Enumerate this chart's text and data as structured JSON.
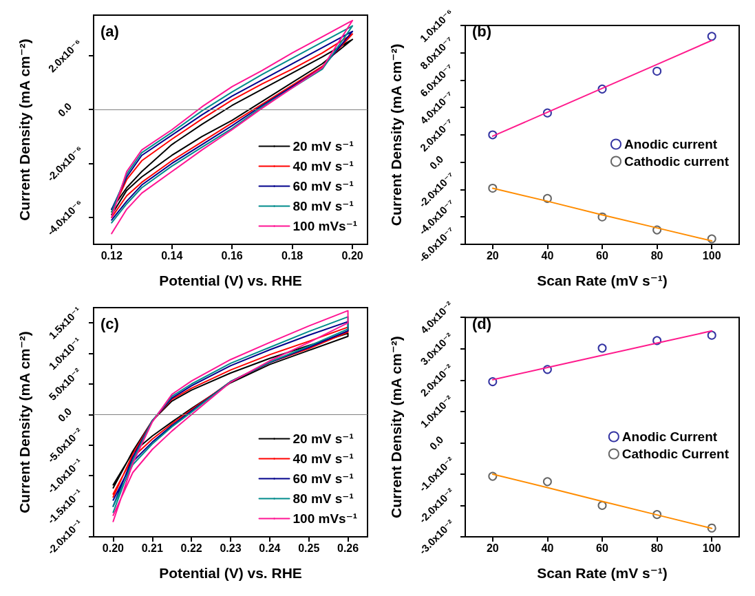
{
  "chart_data": [
    {
      "type": "line",
      "annotations": [
        "(a)"
      ],
      "xlabel": "Potential (V) vs. RHE",
      "ylabel": "Current Density (mA cm⁻²)",
      "x": [
        0.12,
        0.125,
        0.13,
        0.14,
        0.15,
        0.16,
        0.17,
        0.18,
        0.19,
        0.2,
        0.19,
        0.18,
        0.17,
        0.16,
        0.15,
        0.14,
        0.13,
        0.125,
        0.12
      ],
      "series": [
        {
          "name": "20 mV s⁻¹",
          "color": "#000000",
          "values": [
            -3.7e-06,
            -2.9e-06,
            -2.3e-06,
            -1.3e-06,
            -5.5e-07,
            1.5e-07,
            7.5e-07,
            1.35e-06,
            1.95e-06,
            2.6e-06,
            1.7e-06,
            1e-06,
            3e-07,
            -4e-07,
            -1e-06,
            -1.7e-06,
            -2.5e-06,
            -3e-06,
            -3.9e-06
          ]
        },
        {
          "name": "40 mV s⁻¹",
          "color": "#ff0000",
          "values": [
            -3.8e-06,
            -2.6e-06,
            -1.9e-06,
            -1.1e-06,
            -3.5e-07,
            3.5e-07,
            9.5e-07,
            1.5e-06,
            2.1e-06,
            2.8e-06,
            1.6e-06,
            9e-07,
            2e-07,
            -5e-07,
            -1.2e-06,
            -1.9e-06,
            -2.7e-06,
            -3.2e-06,
            -4e-06
          ]
        },
        {
          "name": "60 mV s⁻¹",
          "color": "#00008b",
          "values": [
            -3.7e-06,
            -2.5e-06,
            -1.7e-06,
            -9.5e-07,
            -2e-07,
            5e-07,
            1.1e-06,
            1.7e-06,
            2.3e-06,
            2.9e-06,
            1.55e-06,
            8.5e-07,
            1.5e-07,
            -6e-07,
            -1.3e-06,
            -2e-06,
            -2.8e-06,
            -3.4e-06,
            -4.1e-06
          ]
        },
        {
          "name": "80 mV s⁻¹",
          "color": "#008b8b",
          "values": [
            -3.8e-06,
            -2.4e-06,
            -1.6e-06,
            -8.5e-07,
            -5e-08,
            6.5e-07,
            1.3e-06,
            1.9e-06,
            2.5e-06,
            3.1e-06,
            1.5e-06,
            8e-07,
            1e-07,
            -7e-07,
            -1.4e-06,
            -2.1e-06,
            -2.9e-06,
            -3.5e-06,
            -4.2e-06
          ]
        },
        {
          "name": "100 mVs⁻¹",
          "color": "#ff1493",
          "values": [
            -4e-06,
            -2.3e-06,
            -1.5e-06,
            -7.5e-07,
            1e-07,
            8.5e-07,
            1.45e-06,
            2.1e-06,
            2.7e-06,
            3.3e-06,
            1.55e-06,
            8e-07,
            5e-08,
            -7.5e-07,
            -1.5e-06,
            -2.3e-06,
            -3.1e-06,
            -3.7e-06,
            -4.6e-06
          ]
        }
      ],
      "xlim": [
        0.114,
        0.205
      ],
      "xticks": [
        0.12,
        0.14,
        0.16,
        0.18,
        {
          "value": 0.2,
          "label": "0.20"
        }
      ],
      "ylim": [
        -5e-06,
        3.5e-06
      ],
      "yticks": [
        {
          "value": -4e-06,
          "label": "-4.0x10⁻⁶"
        },
        {
          "value": -2e-06,
          "label": "-2.0x10⁻⁶"
        },
        {
          "value": 0,
          "label": "0.0"
        },
        {
          "value": 2e-06,
          "label": "2.0x10⁻⁶"
        }
      ],
      "ref_lines": [
        {
          "axis": "y",
          "value": 0,
          "color": "#808080"
        }
      ],
      "legend": "bottom right",
      "marker": "none",
      "line_style": "solid"
    },
    {
      "type": "scatter",
      "annotations": [
        "(b)"
      ],
      "xlabel": "Scan Rate (mV s⁻¹)",
      "ylabel": "Current Density (mA cm⁻²)",
      "x": [
        20,
        40,
        60,
        80,
        100
      ],
      "series": [
        {
          "name": "Anodic current",
          "color": "#00008b",
          "values": [
            2e-07,
            3.6e-07,
            5.35e-07,
            6.65e-07,
            9.2e-07
          ]
        },
        {
          "name": "Cathodic current",
          "color": "#404040",
          "values": [
            -1.9e-07,
            -2.65e-07,
            -4e-07,
            -4.95e-07,
            -5.6e-07
          ]
        },
        {
          "type": "line",
          "marker": "none",
          "color": "#ff1a8c",
          "values": [
            1.9e-07,
            3.65e-07,
            5.4e-07,
            7.15e-07,
            8.9e-07
          ]
        },
        {
          "type": "line",
          "marker": "none",
          "color": "#ff8c00",
          "values": [
            -1.9e-07,
            -2.85e-07,
            -3.85e-07,
            -4.8e-07,
            -5.75e-07
          ]
        }
      ],
      "xlim": [
        10,
        110
      ],
      "xticks": [
        20,
        40,
        60,
        80,
        100
      ],
      "ylim": [
        -6e-07,
        1e-06
      ],
      "yticks": [
        {
          "value": -6e-07,
          "label": "-6.0x10⁻⁷"
        },
        {
          "value": -4e-07,
          "label": "-4.0x10⁻⁷"
        },
        {
          "value": -2e-07,
          "label": "-2.0x10⁻⁷"
        },
        {
          "value": 0,
          "label": "0.0"
        },
        {
          "value": 2e-07,
          "label": "2.0x10⁻⁷"
        },
        {
          "value": 4e-07,
          "label": "4.0x10⁻⁷"
        },
        {
          "value": 6e-07,
          "label": "6.0x10⁻⁷"
        },
        {
          "value": 8e-07,
          "label": "8.0x10⁻⁷"
        },
        {
          "value": 1e-06,
          "label": "1.0x10⁻⁶"
        }
      ],
      "legend": "right",
      "marker": "circle"
    },
    {
      "type": "line",
      "annotations": [
        "(c)"
      ],
      "xlabel": "Potential (V) vs. RHE",
      "ylabel": "Current Density (mA cm⁻²)",
      "x": [
        0.2,
        0.205,
        0.21,
        0.215,
        0.22,
        0.23,
        0.24,
        0.25,
        0.26,
        0.26,
        0.25,
        0.24,
        0.23,
        0.22,
        0.215,
        0.21,
        0.205,
        0.2
      ],
      "series": [
        {
          "name": "20 mV s⁻¹",
          "color": "#000000",
          "values": [
            -0.12,
            -0.06,
            -0.01,
            0.022,
            0.04,
            0.068,
            0.092,
            0.113,
            0.133,
            0.128,
            0.105,
            0.082,
            0.052,
            0.01,
            -0.012,
            -0.035,
            -0.062,
            -0.115
          ]
        },
        {
          "name": "40 mV s⁻¹",
          "color": "#ff0000",
          "values": [
            -0.135,
            -0.065,
            -0.01,
            0.025,
            0.043,
            0.073,
            0.098,
            0.12,
            0.143,
            0.135,
            0.108,
            0.085,
            0.054,
            0.008,
            -0.015,
            -0.04,
            -0.07,
            -0.13
          ]
        },
        {
          "name": "60 mV s⁻¹",
          "color": "#00008b",
          "values": [
            -0.15,
            -0.07,
            -0.01,
            0.027,
            0.047,
            0.08,
            0.106,
            0.13,
            0.152,
            0.137,
            0.11,
            0.085,
            0.054,
            0.006,
            -0.018,
            -0.045,
            -0.077,
            -0.14
          ]
        },
        {
          "name": "80 mV s⁻¹",
          "color": "#008b8b",
          "values": [
            -0.16,
            -0.075,
            -0.01,
            0.03,
            0.05,
            0.084,
            0.11,
            0.136,
            0.16,
            0.14,
            0.112,
            0.086,
            0.054,
            0.004,
            -0.02,
            -0.048,
            -0.082,
            -0.15
          ]
        },
        {
          "name": "100 mVs⁻¹",
          "color": "#ff1493",
          "values": [
            -0.175,
            -0.08,
            -0.012,
            0.033,
            0.055,
            0.09,
            0.118,
            0.145,
            0.17,
            0.15,
            0.118,
            0.088,
            0.053,
            0.0,
            -0.027,
            -0.057,
            -0.095,
            -0.165
          ]
        }
      ],
      "xlim": [
        0.195,
        0.265
      ],
      "xticks": [
        {
          "value": 0.2,
          "label": "0.20"
        },
        0.21,
        0.22,
        0.23,
        0.24,
        0.25,
        0.26
      ],
      "ylim": [
        -0.2,
        0.175
      ],
      "yticks": [
        {
          "value": -0.2,
          "label": "-2.0x10⁻¹"
        },
        {
          "value": -0.15,
          "label": "-1.5x10⁻¹"
        },
        {
          "value": -0.1,
          "label": "-1.0x10⁻¹"
        },
        {
          "value": -0.05,
          "label": "-5.0x10⁻²"
        },
        {
          "value": 0,
          "label": "0.0"
        },
        {
          "value": 0.05,
          "label": "5.0x10⁻²"
        },
        {
          "value": 0.1,
          "label": "1.0x10⁻¹"
        },
        {
          "value": 0.15,
          "label": "1.5x10⁻¹"
        }
      ],
      "ref_lines": [
        {
          "axis": "y",
          "value": 0,
          "color": "#808080"
        }
      ],
      "legend": "bottom right",
      "marker": "none",
      "line_style": "solid"
    },
    {
      "type": "scatter",
      "annotations": [
        "(d)"
      ],
      "xlabel": "Scan Rate (mV s⁻¹)",
      "ylabel": "Current Density (mA cm⁻²)",
      "x": [
        20,
        40,
        60,
        80,
        100
      ],
      "series": [
        {
          "name": "Anodic Current",
          "color": "#00008b",
          "values": [
            0.0195,
            0.0234,
            0.0302,
            0.0326,
            0.0343
          ]
        },
        {
          "name": "Cathodic Current",
          "color": "#404040",
          "values": [
            -0.0107,
            -0.0124,
            -0.02,
            -0.0229,
            -0.0272
          ]
        },
        {
          "type": "line",
          "marker": "none",
          "color": "#ff1a8c",
          "values": [
            0.0201,
            0.024,
            0.0279,
            0.0318,
            0.0357
          ]
        },
        {
          "type": "line",
          "marker": "none",
          "color": "#ff8c00",
          "values": [
            -0.01,
            -0.0143,
            -0.0187,
            -0.023,
            -0.0273
          ]
        }
      ],
      "xlim": [
        10,
        110
      ],
      "xticks": [
        20,
        40,
        60,
        80,
        100
      ],
      "ylim": [
        -0.03,
        0.04
      ],
      "yticks": [
        {
          "value": -0.03,
          "label": "-3.0x10⁻²"
        },
        {
          "value": -0.02,
          "label": "-2.0x10⁻²"
        },
        {
          "value": -0.01,
          "label": "-1.0x10⁻²"
        },
        {
          "value": 0,
          "label": "0.0"
        },
        {
          "value": 0.01,
          "label": "1.0x10⁻²"
        },
        {
          "value": 0.02,
          "label": "2.0x10⁻²"
        },
        {
          "value": 0.03,
          "label": "3.0x10⁻²"
        },
        {
          "value": 0.04,
          "label": "4.0x10⁻²"
        }
      ],
      "legend": "right",
      "marker": "circle"
    }
  ]
}
